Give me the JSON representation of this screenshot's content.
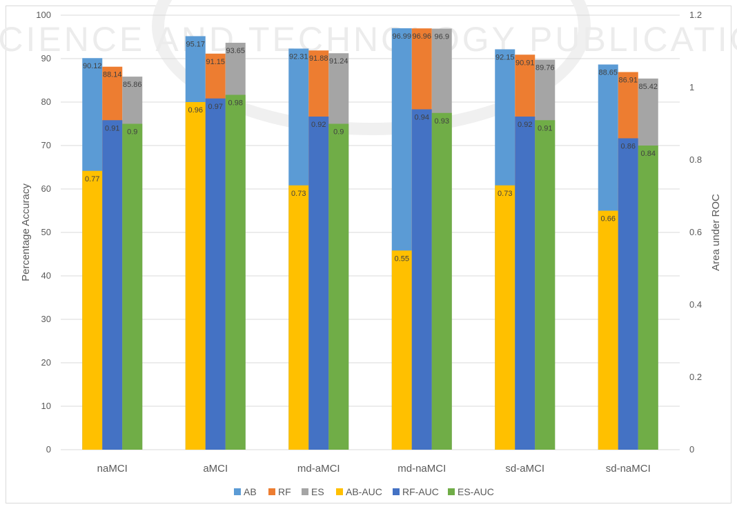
{
  "watermark": "SCIENCE AND TECHNOLOGY PUBLICATIONS",
  "chart_data": {
    "type": "bar",
    "categories": [
      "naMCI",
      "aMCI",
      "md-aMCI",
      "md-naMCI",
      "sd-aMCI",
      "sd-naMCI"
    ],
    "ylabel": "Percentage Accuracy",
    "ylabel_right": "Area under ROC",
    "ylim": [
      0,
      100
    ],
    "ylim_right": [
      0,
      1.2
    ],
    "yticks": [
      "0",
      "10",
      "20",
      "30",
      "40",
      "50",
      "60",
      "70",
      "80",
      "90",
      "100"
    ],
    "yticks_right": [
      "0",
      "0.2",
      "0.4",
      "0.6",
      "0.8",
      "1",
      "1.2"
    ],
    "grid": true,
    "legend_position": "bottom",
    "series": [
      {
        "name": "AB",
        "axis": "left",
        "group": 0,
        "color": "#5b9bd5",
        "values": [
          90.12,
          95.17,
          92.31,
          96.99,
          92.15,
          88.65
        ]
      },
      {
        "name": "RF",
        "axis": "left",
        "group": 1,
        "color": "#ed7d31",
        "values": [
          88.14,
          91.15,
          91.88,
          96.96,
          90.91,
          86.91
        ]
      },
      {
        "name": "ES",
        "axis": "left",
        "group": 2,
        "color": "#a5a5a5",
        "values": [
          85.86,
          93.65,
          91.24,
          96.9,
          89.76,
          85.42
        ]
      },
      {
        "name": "AB-AUC",
        "axis": "right",
        "group": 0,
        "color": "#ffc000",
        "values": [
          0.77,
          0.96,
          0.73,
          0.55,
          0.73,
          0.66
        ]
      },
      {
        "name": "RF-AUC",
        "axis": "right",
        "group": 1,
        "color": "#4472c4",
        "values": [
          0.91,
          0.97,
          0.92,
          0.94,
          0.92,
          0.86
        ]
      },
      {
        "name": "ES-AUC",
        "axis": "right",
        "group": 2,
        "color": "#70ad47",
        "values": [
          0.9,
          0.98,
          0.9,
          0.93,
          0.91,
          0.84
        ]
      }
    ]
  }
}
